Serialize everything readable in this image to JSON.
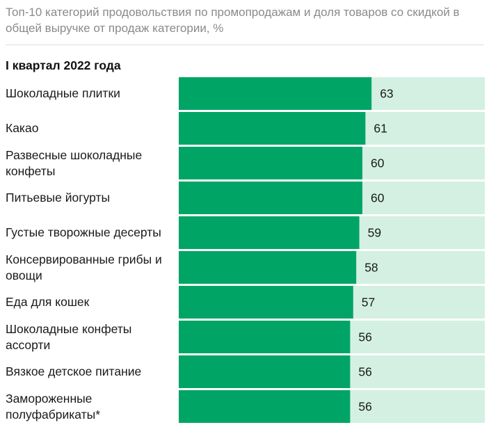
{
  "chart_data": {
    "type": "bar",
    "orientation": "horizontal",
    "subtitle": "Топ-10 категорий продовольствия по промопродажам и доля товаров со скидкой в общей выручке от продаж категории, %",
    "period_label": "I квартал 2022 года",
    "categories": [
      "Шоколадные плитки",
      "Какао",
      "Развесные шоколадные конфеты",
      "Питьевые йогурты",
      "Густые творожные десерты",
      "Консервированные грибы и овощи",
      "Еда для кошек",
      "Шоколадные конфеты ассорти",
      "Вязкое детское питание",
      "Замороженные полуфабрикаты*"
    ],
    "values": [
      63,
      61,
      60,
      60,
      59,
      58,
      57,
      56,
      56,
      56
    ],
    "xlim": [
      0,
      100
    ],
    "grid": false,
    "colors": {
      "bar": "#00a565",
      "track": "#d3f0e3"
    }
  }
}
